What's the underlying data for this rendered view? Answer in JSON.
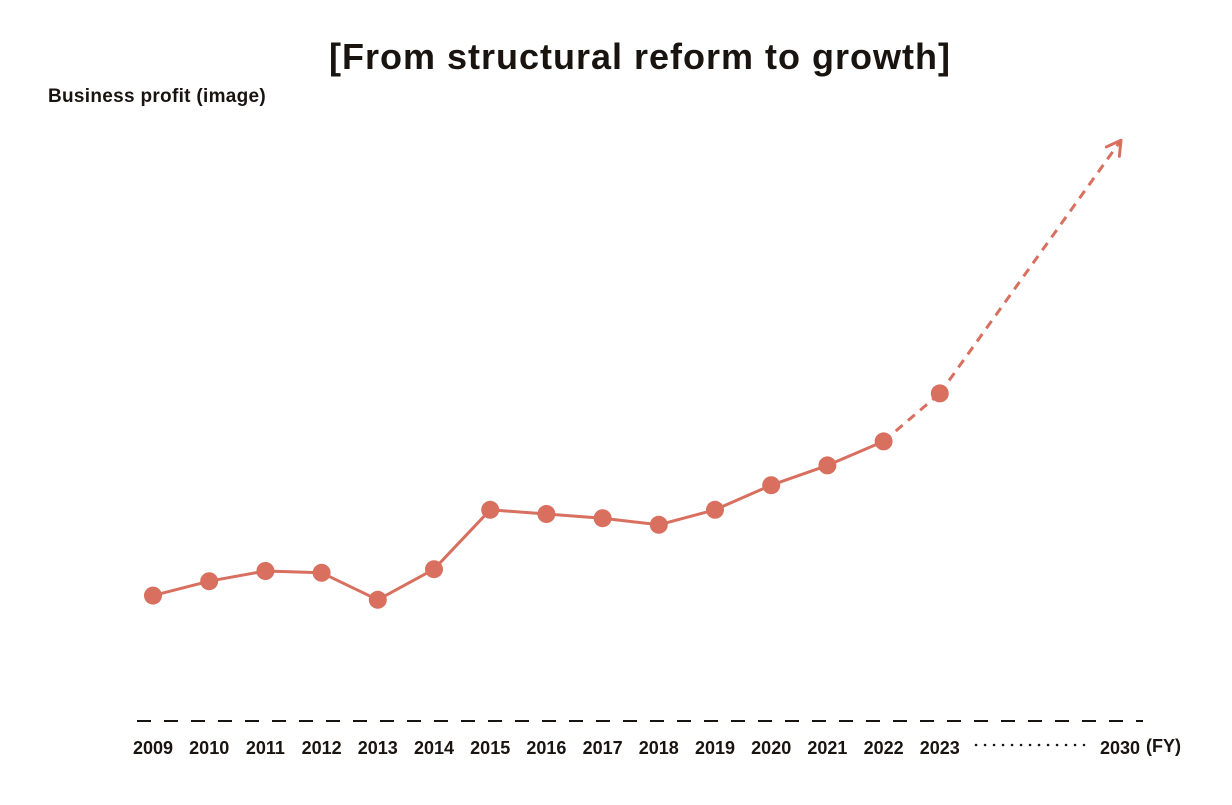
{
  "chart_data": {
    "type": "line",
    "title": "[From structural reform to growth]",
    "ylabel": "Business profit (image)",
    "xlabel": "(FY)",
    "grid": false,
    "legend": "none",
    "x_tick_labels": [
      "2009",
      "2010",
      "2011",
      "2012",
      "2013",
      "2014",
      "2015",
      "2016",
      "2017",
      "2018",
      "2019",
      "2020",
      "2021",
      "2022",
      "2023",
      "2030"
    ],
    "ylim": [
      0,
      100
    ],
    "series": [
      {
        "style": "solid",
        "x": [
          2009,
          2010,
          2011,
          2012,
          2013,
          2014,
          2015,
          2016,
          2017,
          2018,
          2019,
          2020,
          2021,
          2022
        ],
        "values": [
          20.9,
          23.3,
          25.0,
          24.7,
          20.2,
          25.3,
          35.2,
          34.5,
          33.8,
          32.7,
          35.2,
          39.3,
          42.6,
          46.6
        ]
      },
      {
        "style": "dashed",
        "x": [
          2022,
          2023
        ],
        "values": [
          46.6,
          54.6
        ]
      },
      {
        "style": "dashed-arrow",
        "x": [
          2023,
          2030
        ],
        "values": [
          54.6,
          96.8
        ]
      }
    ],
    "markers": {
      "x": [
        2009,
        2010,
        2011,
        2012,
        2013,
        2014,
        2015,
        2016,
        2017,
        2018,
        2019,
        2020,
        2021,
        2022,
        2023
      ],
      "values": [
        20.9,
        23.3,
        25.0,
        24.7,
        20.2,
        25.3,
        35.2,
        34.5,
        33.8,
        32.7,
        35.2,
        39.3,
        42.6,
        46.6,
        54.6
      ]
    },
    "colors": {
      "line": "#d86f5f",
      "axis": "#1a1410"
    }
  }
}
